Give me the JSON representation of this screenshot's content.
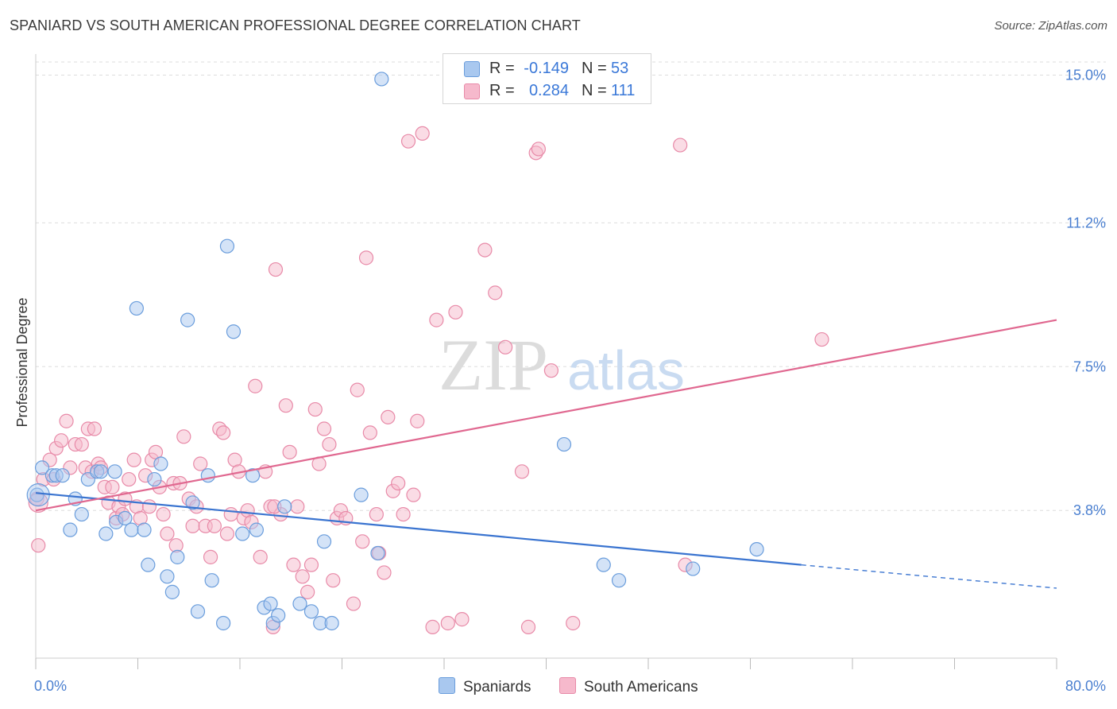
{
  "title": "SPANIARD VS SOUTH AMERICAN PROFESSIONAL DEGREE CORRELATION CHART",
  "source": "Source: ZipAtlas.com",
  "watermark": {
    "zip": "ZIP",
    "atlas": "atlas"
  },
  "colors": {
    "spaniards_fill": "#a9c8ef",
    "spaniards_stroke": "#6a9ddc",
    "spaniards_line": "#3a74d0",
    "south_americans_fill": "#f6b9cc",
    "south_americans_stroke": "#e88aa8",
    "south_americans_line": "#e06890",
    "tick_color": "#4a7fd0",
    "grid": "#dddddd"
  },
  "legend": {
    "rows": [
      {
        "r_label": "R =",
        "r_value": "-0.149",
        "n_label": "N =",
        "n_value": "53"
      },
      {
        "r_label": "R =",
        "r_value": "0.284",
        "n_label": "N =",
        "n_value": "111"
      }
    ]
  },
  "bottom_legend": {
    "spaniards": "Spaniards",
    "south_americans": "South Americans"
  },
  "chart_data": {
    "type": "scatter",
    "title": "SPANIARD VS SOUTH AMERICAN PROFESSIONAL DEGREE CORRELATION CHART",
    "xlabel": "",
    "ylabel": "Professional Degree",
    "xlim": [
      0,
      80
    ],
    "ylim": [
      0,
      15.4
    ],
    "x_tick_labels": [
      "0.0%",
      "80.0%"
    ],
    "y_ticks": [
      3.8,
      7.5,
      11.2,
      15.0
    ],
    "y_tick_labels": [
      "3.8%",
      "7.5%",
      "11.2%",
      "15.0%"
    ],
    "grid": true,
    "legend_position": "top-center",
    "series": [
      {
        "name": "Spaniards",
        "r": -0.149,
        "n": 53,
        "trend": {
          "x0": 0,
          "y0": 4.25,
          "x1": 60,
          "y1": 2.4,
          "dash_to_x": 80,
          "dash_to_y": 1.8
        },
        "points": [
          [
            0.1,
            4.2
          ],
          [
            0.5,
            4.9
          ],
          [
            1.3,
            4.7
          ],
          [
            1.6,
            4.7
          ],
          [
            2.1,
            4.7
          ],
          [
            2.7,
            3.3
          ],
          [
            3.1,
            4.1
          ],
          [
            3.6,
            3.7
          ],
          [
            4.1,
            4.6
          ],
          [
            4.8,
            4.8
          ],
          [
            5.1,
            4.8
          ],
          [
            5.5,
            3.2
          ],
          [
            6.2,
            4.8
          ],
          [
            6.3,
            3.5
          ],
          [
            7.0,
            3.6
          ],
          [
            7.5,
            3.3
          ],
          [
            7.9,
            9.0
          ],
          [
            8.5,
            3.3
          ],
          [
            8.8,
            2.4
          ],
          [
            9.3,
            4.6
          ],
          [
            9.8,
            5.0
          ],
          [
            10.3,
            2.1
          ],
          [
            10.7,
            1.7
          ],
          [
            11.1,
            2.6
          ],
          [
            11.9,
            8.7
          ],
          [
            12.3,
            4.0
          ],
          [
            12.7,
            1.2
          ],
          [
            13.5,
            4.7
          ],
          [
            13.8,
            2.0
          ],
          [
            14.7,
            0.9
          ],
          [
            15.0,
            10.6
          ],
          [
            15.5,
            8.4
          ],
          [
            16.2,
            3.2
          ],
          [
            17.0,
            4.7
          ],
          [
            17.3,
            3.3
          ],
          [
            17.9,
            1.3
          ],
          [
            18.4,
            1.4
          ],
          [
            18.6,
            0.9
          ],
          [
            19.0,
            1.1
          ],
          [
            19.5,
            3.9
          ],
          [
            20.7,
            1.4
          ],
          [
            21.6,
            1.2
          ],
          [
            22.3,
            0.9
          ],
          [
            22.6,
            3.0
          ],
          [
            23.2,
            0.9
          ],
          [
            25.5,
            4.2
          ],
          [
            26.8,
            2.7
          ],
          [
            27.1,
            14.9
          ],
          [
            41.4,
            5.5
          ],
          [
            44.5,
            2.4
          ],
          [
            45.7,
            2.0
          ],
          [
            51.5,
            2.3
          ],
          [
            56.5,
            2.8
          ]
        ]
      },
      {
        "name": "South Americans",
        "r": 0.284,
        "n": 111,
        "trend": {
          "x0": 0,
          "y0": 3.8,
          "x1": 80,
          "y1": 8.7
        },
        "points": [
          [
            0.1,
            4.1
          ],
          [
            0.2,
            2.9
          ],
          [
            0.6,
            4.6
          ],
          [
            1.1,
            5.1
          ],
          [
            1.4,
            4.6
          ],
          [
            1.6,
            5.4
          ],
          [
            2.0,
            5.6
          ],
          [
            2.4,
            6.1
          ],
          [
            2.7,
            4.9
          ],
          [
            3.1,
            5.5
          ],
          [
            3.6,
            5.5
          ],
          [
            3.9,
            4.9
          ],
          [
            4.1,
            5.9
          ],
          [
            4.4,
            4.8
          ],
          [
            4.6,
            5.9
          ],
          [
            4.9,
            5.0
          ],
          [
            5.1,
            4.9
          ],
          [
            5.4,
            4.4
          ],
          [
            5.7,
            4.0
          ],
          [
            6.0,
            4.4
          ],
          [
            6.3,
            3.6
          ],
          [
            6.5,
            3.9
          ],
          [
            6.8,
            3.7
          ],
          [
            7.0,
            4.1
          ],
          [
            7.3,
            4.6
          ],
          [
            7.7,
            5.1
          ],
          [
            7.9,
            3.9
          ],
          [
            8.2,
            3.6
          ],
          [
            8.6,
            4.7
          ],
          [
            8.9,
            3.9
          ],
          [
            9.1,
            5.1
          ],
          [
            9.4,
            5.3
          ],
          [
            9.7,
            4.4
          ],
          [
            10.0,
            3.7
          ],
          [
            10.3,
            3.2
          ],
          [
            10.8,
            4.5
          ],
          [
            11.0,
            2.9
          ],
          [
            11.3,
            4.5
          ],
          [
            11.6,
            5.7
          ],
          [
            12.0,
            4.1
          ],
          [
            12.3,
            3.4
          ],
          [
            12.6,
            3.9
          ],
          [
            12.9,
            5.0
          ],
          [
            13.3,
            3.4
          ],
          [
            13.7,
            2.6
          ],
          [
            14.0,
            3.4
          ],
          [
            14.4,
            5.9
          ],
          [
            14.7,
            5.8
          ],
          [
            15.0,
            3.2
          ],
          [
            15.3,
            3.7
          ],
          [
            15.6,
            5.1
          ],
          [
            15.9,
            4.8
          ],
          [
            16.3,
            3.6
          ],
          [
            16.6,
            3.8
          ],
          [
            16.9,
            3.5
          ],
          [
            17.2,
            7.0
          ],
          [
            17.6,
            2.6
          ],
          [
            18.0,
            4.8
          ],
          [
            18.4,
            3.9
          ],
          [
            18.6,
            0.8
          ],
          [
            18.8,
            10.0
          ],
          [
            19.2,
            3.7
          ],
          [
            19.6,
            6.5
          ],
          [
            19.9,
            5.3
          ],
          [
            20.2,
            2.4
          ],
          [
            20.5,
            3.9
          ],
          [
            20.9,
            2.1
          ],
          [
            21.3,
            1.7
          ],
          [
            21.6,
            2.4
          ],
          [
            21.9,
            6.4
          ],
          [
            22.2,
            5.0
          ],
          [
            22.6,
            5.9
          ],
          [
            23.0,
            5.5
          ],
          [
            23.3,
            2.0
          ],
          [
            23.6,
            3.6
          ],
          [
            23.9,
            3.8
          ],
          [
            24.3,
            3.6
          ],
          [
            24.9,
            1.4
          ],
          [
            25.2,
            6.9
          ],
          [
            25.6,
            3.0
          ],
          [
            25.9,
            10.3
          ],
          [
            26.2,
            5.8
          ],
          [
            26.9,
            2.7
          ],
          [
            27.3,
            2.2
          ],
          [
            27.6,
            6.2
          ],
          [
            28.0,
            4.3
          ],
          [
            28.4,
            4.5
          ],
          [
            28.8,
            3.7
          ],
          [
            29.2,
            13.3
          ],
          [
            29.6,
            4.2
          ],
          [
            29.9,
            6.1
          ],
          [
            30.3,
            13.5
          ],
          [
            31.1,
            0.8
          ],
          [
            31.4,
            8.7
          ],
          [
            32.3,
            0.9
          ],
          [
            32.9,
            8.9
          ],
          [
            33.4,
            1.0
          ],
          [
            35.2,
            10.5
          ],
          [
            36.0,
            9.4
          ],
          [
            36.8,
            8.0
          ],
          [
            38.1,
            4.8
          ],
          [
            38.6,
            0.8
          ],
          [
            39.2,
            13.0
          ],
          [
            39.4,
            13.1
          ],
          [
            40.4,
            7.4
          ],
          [
            42.1,
            0.9
          ],
          [
            50.5,
            13.2
          ],
          [
            50.9,
            2.4
          ],
          [
            61.6,
            8.2
          ],
          [
            18.7,
            3.9
          ],
          [
            26.7,
            3.7
          ]
        ]
      }
    ]
  }
}
